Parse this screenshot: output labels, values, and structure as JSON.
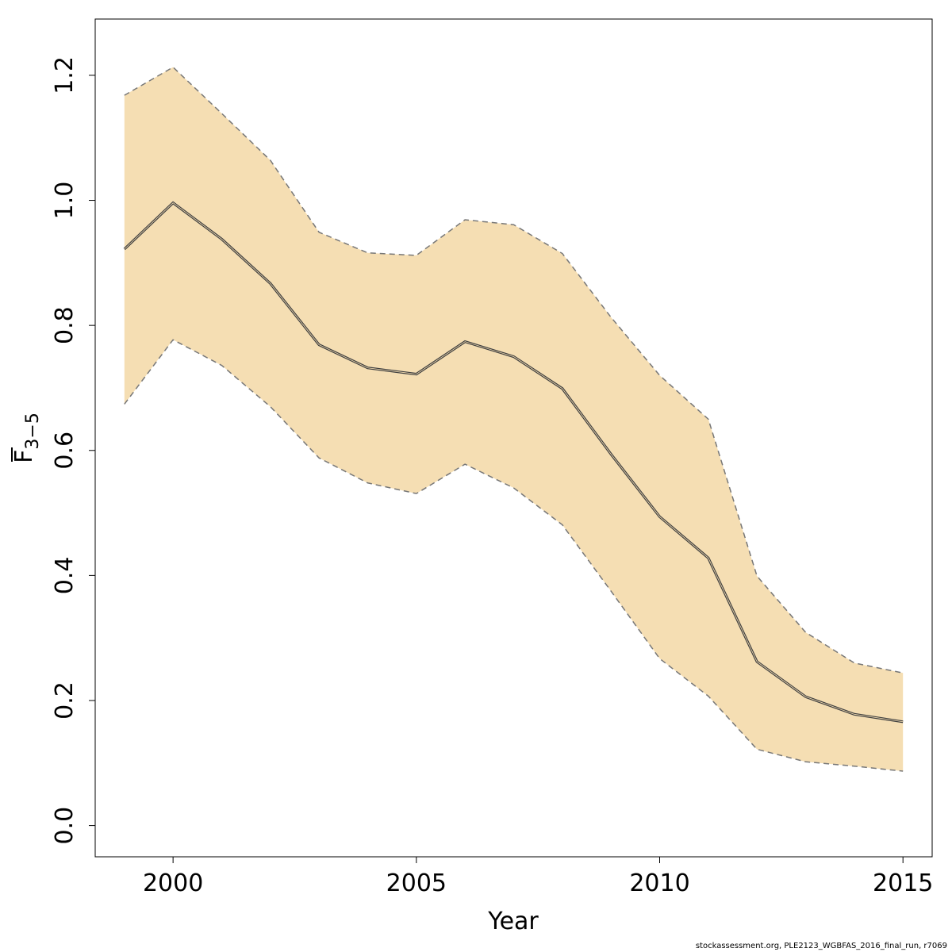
{
  "chart_data": {
    "type": "line",
    "title": "",
    "xlabel": "Year",
    "ylabel": {
      "base": "F",
      "subscript": "3−5",
      "overline": true
    },
    "xlim": [
      1998.4,
      2015.6
    ],
    "ylim": [
      -0.05,
      1.29
    ],
    "x_ticks": [
      2000,
      2005,
      2010,
      2015
    ],
    "x_tick_labels": [
      "2000",
      "2005",
      "2010",
      "2015"
    ],
    "y_ticks": [
      0.0,
      0.2,
      0.4,
      0.6,
      0.8,
      1.0,
      1.2
    ],
    "y_tick_labels": [
      "0.0",
      "0.2",
      "0.4",
      "0.6",
      "0.8",
      "1.0",
      "1.2"
    ],
    "grid": false,
    "x": [
      1999,
      2000,
      2001,
      2002,
      2003,
      2004,
      2005,
      2006,
      2007,
      2008,
      2009,
      2010,
      2011,
      2012,
      2013,
      2014,
      2015
    ],
    "series": [
      {
        "values": [
          0.922,
          0.996,
          0.938,
          0.867,
          0.769,
          0.732,
          0.722,
          0.774,
          0.75,
          0.699,
          0.594,
          0.494,
          0.428,
          0.262,
          0.206,
          0.178,
          0.166
        ]
      }
    ],
    "band": {
      "upper": [
        1.168,
        1.213,
        1.139,
        1.064,
        0.949,
        0.916,
        0.912,
        0.969,
        0.961,
        0.915,
        0.813,
        0.72,
        0.65,
        0.399,
        0.309,
        0.26,
        0.244
      ],
      "lower": [
        0.674,
        0.777,
        0.736,
        0.67,
        0.588,
        0.548,
        0.531,
        0.578,
        0.54,
        0.481,
        0.375,
        0.267,
        0.207,
        0.122,
        0.102,
        0.095,
        0.087
      ]
    },
    "colors": {
      "band": "#f5deb3",
      "line": "#404040",
      "band_edge": "#777777",
      "axis": "#000000"
    }
  },
  "footer": "stockassessment.org, PLE2123_WGBFAS_2016_final_run, r7069"
}
